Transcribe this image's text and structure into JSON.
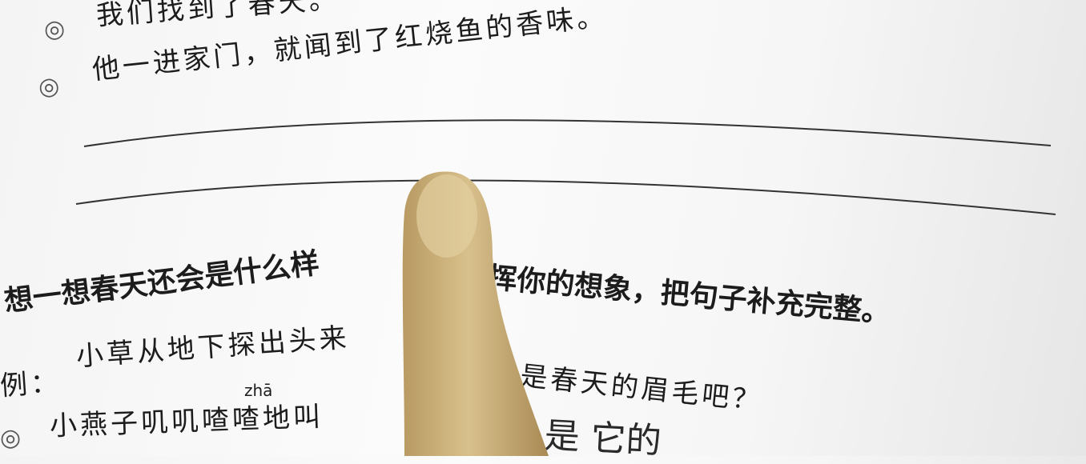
{
  "items": [
    {
      "bullet": "◎",
      "text": "我们找到了春天。"
    },
    {
      "bullet": "◎",
      "text": "他一进家门，就闻到了红烧鱼的香味。"
    }
  ],
  "task": {
    "left": "想一想春天还会是什么样",
    "right": "挥你的想象，把句子补充完整。"
  },
  "example": {
    "label": "例：",
    "left": "小草从地下探出头来",
    "right": "是春天的眉毛吧？"
  },
  "exercise": {
    "pinyin": "zhā",
    "bullet": "◎",
    "left": "小燕子叽叽喳喳地叫",
    "handwriting": "是 它的"
  }
}
